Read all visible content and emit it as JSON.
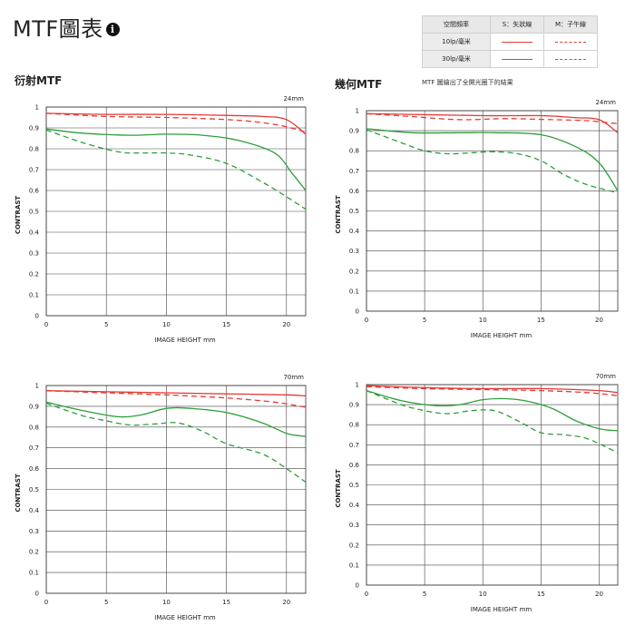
{
  "page": {
    "title": "MTF圖表",
    "info_icon": "info-icon",
    "section_left": "衍射MTF",
    "section_right": "幾何MTF",
    "note": "MTF 圖繪出了全開光圈下的結果"
  },
  "legend": {
    "header_freq": "空間頻率",
    "header_s": "S：矢狀線",
    "header_m": "M：子午線",
    "row1_label": "10lp/毫米",
    "row2_label": "30lp/毫米",
    "color_10lp": "#e53935",
    "color_30lp": "#2e9e3a"
  },
  "chart_data": [
    {
      "type": "line",
      "panel": "diffraction-24mm",
      "title": "24mm",
      "xlabel": "IMAGE HEIGHT   mm",
      "ylabel": "CONTRAST",
      "xlim": [
        0,
        21.6
      ],
      "ylim": [
        0,
        1
      ],
      "grid": true,
      "xticks": [
        0,
        5,
        10,
        15,
        20
      ],
      "yticks": [
        0,
        0.1,
        0.2,
        0.3,
        0.4,
        0.5,
        0.6,
        0.7,
        0.8,
        0.9,
        1
      ],
      "series": [
        {
          "freq": "10lp",
          "orient": "S",
          "x": [
            0,
            5,
            10,
            15,
            18,
            20,
            21.6
          ],
          "y": [
            0.97,
            0.965,
            0.965,
            0.96,
            0.955,
            0.94,
            0.87
          ]
        },
        {
          "freq": "10lp",
          "orient": "M",
          "x": [
            0,
            5,
            10,
            15,
            18,
            20,
            21.6
          ],
          "y": [
            0.97,
            0.955,
            0.95,
            0.94,
            0.925,
            0.905,
            0.88
          ]
        },
        {
          "freq": "30lp",
          "orient": "S",
          "x": [
            0,
            3,
            7,
            10,
            13,
            16,
            19,
            20.5,
            21.6
          ],
          "y": [
            0.895,
            0.875,
            0.865,
            0.87,
            0.865,
            0.84,
            0.78,
            0.68,
            0.6
          ]
        },
        {
          "freq": "30lp",
          "orient": "M",
          "x": [
            0,
            3,
            6,
            8,
            10,
            12,
            15,
            18,
            20,
            21.6
          ],
          "y": [
            0.89,
            0.83,
            0.785,
            0.78,
            0.78,
            0.77,
            0.73,
            0.64,
            0.57,
            0.51
          ]
        }
      ]
    },
    {
      "type": "line",
      "panel": "geometric-24mm",
      "title": "24mm",
      "xlabel": "IMAGE HEIGHT   mm",
      "ylabel": "CONTRAST",
      "xlim": [
        0,
        21.6
      ],
      "ylim": [
        0,
        1
      ],
      "grid": true,
      "xticks": [
        0,
        5,
        10,
        15,
        20
      ],
      "yticks": [
        0,
        0.1,
        0.2,
        0.3,
        0.4,
        0.5,
        0.6,
        0.7,
        0.8,
        0.9,
        1
      ],
      "series": [
        {
          "freq": "10lp",
          "orient": "S",
          "x": [
            0,
            5,
            10,
            15,
            18,
            20,
            21.6
          ],
          "y": [
            0.985,
            0.98,
            0.975,
            0.975,
            0.965,
            0.955,
            0.89
          ]
        },
        {
          "freq": "10lp",
          "orient": "M",
          "x": [
            0,
            4,
            8,
            12,
            16,
            19,
            21.6
          ],
          "y": [
            0.985,
            0.97,
            0.955,
            0.96,
            0.955,
            0.95,
            0.935
          ]
        },
        {
          "freq": "30lp",
          "orient": "S",
          "x": [
            0,
            4,
            8,
            11,
            15,
            18,
            20,
            21.6
          ],
          "y": [
            0.91,
            0.89,
            0.89,
            0.89,
            0.88,
            0.82,
            0.74,
            0.6
          ]
        },
        {
          "freq": "30lp",
          "orient": "M",
          "x": [
            0,
            3,
            5,
            7,
            9,
            11,
            13,
            15,
            17,
            19,
            21.6
          ],
          "y": [
            0.905,
            0.84,
            0.8,
            0.785,
            0.79,
            0.795,
            0.785,
            0.75,
            0.68,
            0.63,
            0.59
          ]
        }
      ]
    },
    {
      "type": "line",
      "panel": "diffraction-70mm",
      "title": "70mm",
      "xlabel": "IMAGE HEIGHT   mm",
      "ylabel": "CONTRAST",
      "xlim": [
        0,
        21.6
      ],
      "ylim": [
        0,
        1
      ],
      "grid": true,
      "xticks": [
        0,
        5,
        10,
        15,
        20
      ],
      "yticks": [
        0,
        0.1,
        0.2,
        0.3,
        0.4,
        0.5,
        0.6,
        0.7,
        0.8,
        0.9,
        1
      ],
      "series": [
        {
          "freq": "10lp",
          "orient": "S",
          "x": [
            0,
            5,
            10,
            15,
            20,
            21.6
          ],
          "y": [
            0.975,
            0.97,
            0.965,
            0.96,
            0.955,
            0.95
          ]
        },
        {
          "freq": "10lp",
          "orient": "M",
          "x": [
            0,
            5,
            10,
            15,
            19,
            21.6
          ],
          "y": [
            0.975,
            0.965,
            0.955,
            0.94,
            0.92,
            0.895
          ]
        },
        {
          "freq": "30lp",
          "orient": "S",
          "x": [
            0,
            3,
            6,
            8,
            10,
            12,
            15,
            18,
            20,
            21.6
          ],
          "y": [
            0.92,
            0.88,
            0.85,
            0.86,
            0.89,
            0.89,
            0.87,
            0.82,
            0.77,
            0.755
          ]
        },
        {
          "freq": "30lp",
          "orient": "M",
          "x": [
            0,
            3,
            5,
            7,
            9,
            11,
            13,
            15,
            18,
            20,
            21.6
          ],
          "y": [
            0.915,
            0.855,
            0.83,
            0.81,
            0.815,
            0.82,
            0.78,
            0.72,
            0.67,
            0.6,
            0.535
          ]
        }
      ]
    },
    {
      "type": "line",
      "panel": "geometric-70mm",
      "title": "70mm",
      "xlabel": "IMAGE HEIGHT   mm",
      "ylabel": "CONTRAST",
      "xlim": [
        0,
        21.6
      ],
      "ylim": [
        0,
        1
      ],
      "grid": true,
      "xticks": [
        0,
        5,
        10,
        15,
        20
      ],
      "yticks": [
        0,
        0.1,
        0.2,
        0.3,
        0.4,
        0.5,
        0.6,
        0.7,
        0.8,
        0.9,
        1
      ],
      "series": [
        {
          "freq": "10lp",
          "orient": "S",
          "x": [
            0,
            5,
            10,
            15,
            20,
            21.6
          ],
          "y": [
            0.995,
            0.985,
            0.98,
            0.98,
            0.97,
            0.96
          ]
        },
        {
          "freq": "10lp",
          "orient": "M",
          "x": [
            0,
            5,
            10,
            15,
            19,
            21.6
          ],
          "y": [
            0.99,
            0.98,
            0.975,
            0.97,
            0.96,
            0.945
          ]
        },
        {
          "freq": "30lp",
          "orient": "S",
          "x": [
            0,
            3,
            6,
            8,
            10,
            12,
            14,
            16,
            18,
            20,
            21.6
          ],
          "y": [
            0.97,
            0.92,
            0.895,
            0.9,
            0.925,
            0.93,
            0.915,
            0.88,
            0.82,
            0.78,
            0.77
          ]
        },
        {
          "freq": "30lp",
          "orient": "M",
          "x": [
            0,
            3,
            5,
            7,
            9,
            11,
            13,
            15,
            17,
            19,
            21.6
          ],
          "y": [
            0.97,
            0.9,
            0.87,
            0.855,
            0.87,
            0.87,
            0.82,
            0.76,
            0.75,
            0.73,
            0.66
          ]
        }
      ]
    }
  ]
}
